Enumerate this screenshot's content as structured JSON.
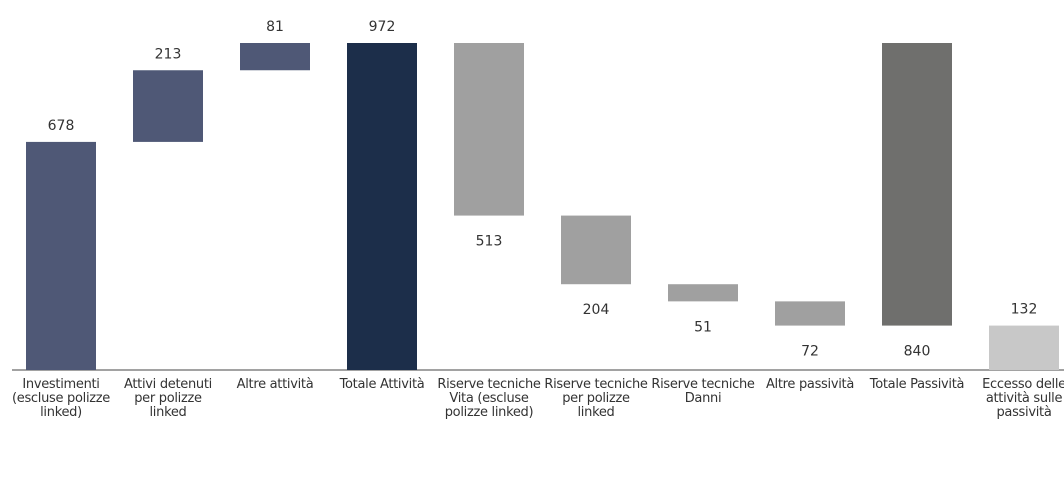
{
  "chart_data": {
    "type": "waterfall",
    "categories": [
      "Investimenti (escluse polizze linked)",
      "Attivi detenuti per polizze linked",
      "Altre attività",
      "Totale Attività",
      "Riserve tecniche Vita (escluse polizze linked)",
      "Riserve tecniche per polizze linked",
      "Riserve tecniche Danni",
      "Altre passività",
      "Totale Passività",
      "Eccesso delle attività sulle passività"
    ],
    "values": [
      678,
      213,
      81,
      972,
      513,
      204,
      51,
      72,
      840,
      132
    ],
    "measures": [
      "increase",
      "increase",
      "increase",
      "total",
      "decrease",
      "decrease",
      "decrease",
      "decrease",
      "span",
      "total"
    ],
    "colors": [
      "#4f5876",
      "#4f5876",
      "#4f5876",
      "#1c2e4a",
      "#a0a0a0",
      "#a0a0a0",
      "#a0a0a0",
      "#a0a0a0",
      "#6f6f6d",
      "#c8c8c8"
    ],
    "ylim": [
      0,
      972
    ]
  }
}
